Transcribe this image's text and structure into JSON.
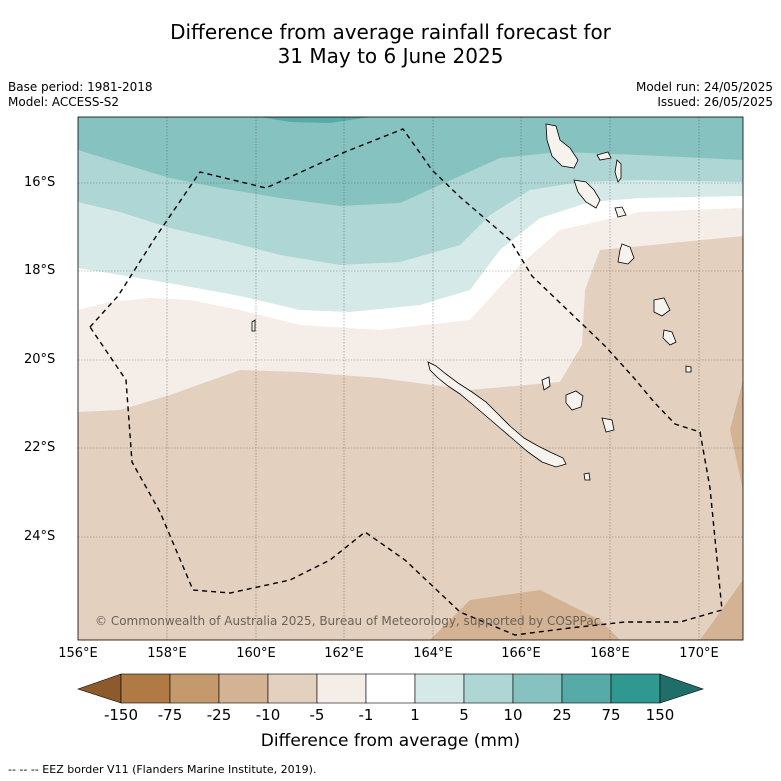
{
  "title_line1": "Difference from average rainfall forecast for",
  "title_line2": "31 May to 6 June 2025",
  "meta_left": {
    "base_period": "Base period: 1981-2018",
    "model": "Model: ACCESS-S2"
  },
  "meta_right": {
    "model_run": "Model run: 24/05/2025",
    "issued": "Issued: 26/05/2025"
  },
  "latitude_labels": [
    "16°S",
    "18°S",
    "20°S",
    "22°S",
    "24°S"
  ],
  "longitude_labels": [
    "156°E",
    "158°E",
    "160°E",
    "162°E",
    "164°E",
    "166°E",
    "168°E",
    "170°E"
  ],
  "copyright": "© Commonwealth of Australia 2025, Bureau of Meteorology, supported by COSPPac",
  "colorbar": {
    "title": "Difference from average (mm)",
    "ticks": [
      "-150",
      "-75",
      "-25",
      "-10",
      "-5",
      "-1",
      "1",
      "5",
      "10",
      "25",
      "75",
      "150"
    ],
    "colors": {
      "below_min": "#8c5a2b",
      "b_-150_-75": "#b07a45",
      "b_-75_-25": "#c49a6c",
      "b_-25_-10": "#d4b394",
      "b_-10_-5": "#e3d0bf",
      "b_-5_-1": "#f4ede8",
      "b_-1_1": "#ffffff",
      "b_1_5": "#d5e9e8",
      "b_5_10": "#aed6d4",
      "b_10_25": "#86c3c0",
      "b_25_75": "#56aaa8",
      "b_75_150": "#2f9891",
      "above_max": "#1f6e69"
    }
  },
  "footnote": "--  --  -- EEZ border V11 (Flanders Marine Institute, 2019)."
}
